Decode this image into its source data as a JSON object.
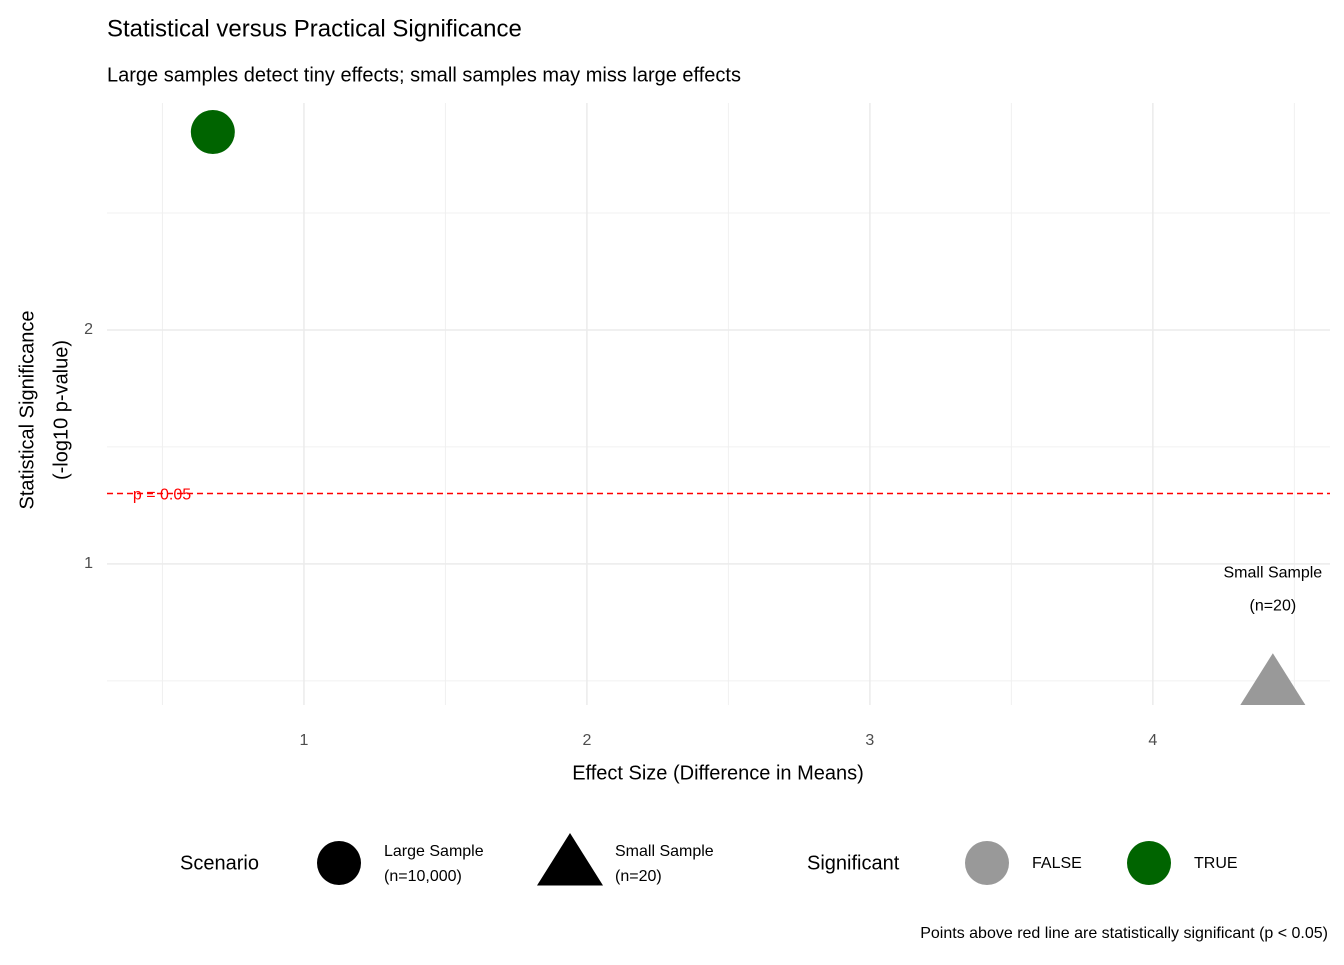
{
  "chart_data": {
    "type": "scatter",
    "title": "Statistical versus Practical Significance",
    "subtitle": "Large samples detect tiny effects; small samples may miss large effects",
    "x_label": "Effect Size (Difference in Means)",
    "y_label": [
      "Statistical Significance",
      "(-log10 p-value)"
    ],
    "caption": "Points above red line are statistically significant (p < 0.05)",
    "xlim": [
      0.304,
      4.626
    ],
    "xticks": [
      1,
      2,
      3,
      4
    ],
    "xminor": [
      0.5,
      1.5,
      2.5,
      3.5,
      4.5
    ],
    "ylim": [
      0.397,
      2.97
    ],
    "yticks": [
      1,
      2
    ],
    "yminor": [
      0.5,
      1.5,
      2.5
    ],
    "grid": true,
    "hline": {
      "value": 1.301,
      "label": "p = 0.05",
      "color": "#ff0000"
    },
    "shape_legend": {
      "title": "Scenario"
    },
    "color_legend": {
      "title": "Significant",
      "items": [
        {
          "label": "FALSE",
          "color": "#999999"
        },
        {
          "label": "TRUE",
          "color": "#006400"
        }
      ]
    },
    "series": [
      {
        "name": [
          "Large Sample",
          "(n=10,000)"
        ],
        "shape": "circle",
        "significant": "TRUE",
        "x": [
          0.678
        ],
        "values": [
          2.846
        ]
      },
      {
        "name": [
          "Small Sample",
          "(n=20)"
        ],
        "shape": "triangle",
        "significant": "FALSE",
        "x": [
          4.424
        ],
        "values": [
          0.49
        ]
      }
    ],
    "legend_position": "bottom"
  }
}
